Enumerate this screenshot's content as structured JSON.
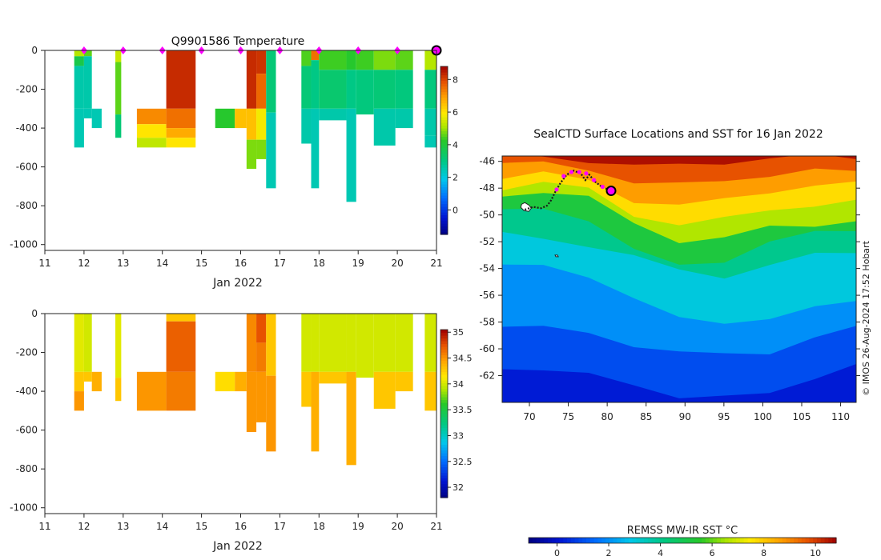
{
  "chart_data": [
    {
      "type": "heatmap",
      "name": "temperature-section",
      "title": "Q9901586  Temperature",
      "xlabel": "Jan 2022",
      "ylabel": "",
      "xlim": [
        11,
        21
      ],
      "ylim": [
        -1030,
        0
      ],
      "xticks": [
        11,
        12,
        13,
        14,
        15,
        16,
        17,
        18,
        19,
        20,
        21
      ],
      "yticks": [
        0,
        -200,
        -400,
        -600,
        -800,
        -1000
      ],
      "surface_markers": [
        12,
        13,
        14,
        15,
        16,
        17,
        18,
        19,
        20
      ],
      "last_profile_marker": 21,
      "colorbar": {
        "min": -1.5,
        "max": 8.8,
        "ticks": [
          0,
          2,
          4,
          6,
          8
        ]
      },
      "profiles": [
        {
          "x0": 11.75,
          "x1": 12.0,
          "max_depth": 500,
          "segments": [
            [
              0,
              30,
              5.2
            ],
            [
              30,
              80,
              3.8
            ],
            [
              80,
              300,
              2.6
            ],
            [
              300,
              500,
              2.5
            ]
          ]
        },
        {
          "x0": 12.0,
          "x1": 12.2,
          "max_depth": 350,
          "segments": [
            [
              0,
              30,
              4.6
            ],
            [
              30,
              300,
              2.6
            ],
            [
              300,
              350,
              2.5
            ]
          ]
        },
        {
          "x0": 12.2,
          "x1": 12.45,
          "max_depth": 400,
          "segments": [
            [
              300,
              400,
              2.5
            ]
          ]
        },
        {
          "x0": 12.8,
          "x1": 12.95,
          "max_depth": 450,
          "segments": [
            [
              0,
              60,
              5.4
            ],
            [
              60,
              330,
              4.6
            ],
            [
              330,
              450,
              3.2
            ]
          ]
        },
        {
          "x0": 13.35,
          "x1": 14.1,
          "max_depth": 500,
          "segments": [
            [
              300,
              380,
              7.2
            ],
            [
              380,
              450,
              6.0
            ],
            [
              450,
              500,
              5.3
            ]
          ]
        },
        {
          "x0": 14.1,
          "x1": 14.85,
          "max_depth": 500,
          "segments": [
            [
              0,
              300,
              8.3
            ],
            [
              300,
              400,
              7.5
            ],
            [
              400,
              450,
              6.8
            ],
            [
              450,
              500,
              6.0
            ]
          ]
        },
        {
          "x0": 15.35,
          "x1": 15.85,
          "max_depth": 400,
          "segments": [
            [
              300,
              400,
              4.2
            ]
          ]
        },
        {
          "x0": 15.85,
          "x1": 16.15,
          "max_depth": 400,
          "segments": [
            [
              300,
              400,
              6.5
            ]
          ]
        },
        {
          "x0": 16.15,
          "x1": 16.4,
          "max_depth": 610,
          "segments": [
            [
              0,
              300,
              8.3
            ],
            [
              300,
              460,
              6.5
            ],
            [
              460,
              610,
              4.8
            ]
          ]
        },
        {
          "x0": 16.4,
          "x1": 16.65,
          "max_depth": 560,
          "segments": [
            [
              0,
              120,
              8.2
            ],
            [
              120,
              300,
              7.6
            ],
            [
              300,
              460,
              5.8
            ],
            [
              460,
              560,
              4.8
            ]
          ]
        },
        {
          "x0": 16.65,
          "x1": 16.9,
          "max_depth": 710,
          "segments": [
            [
              0,
              320,
              3.2
            ],
            [
              320,
              710,
              2.5
            ]
          ]
        },
        {
          "x0": 17.55,
          "x1": 17.8,
          "max_depth": 480,
          "segments": [
            [
              0,
              80,
              4.5
            ],
            [
              80,
              300,
              3.2
            ],
            [
              300,
              480,
              2.6
            ]
          ]
        },
        {
          "x0": 17.8,
          "x1": 18.0,
          "max_depth": 710,
          "segments": [
            [
              0,
              50,
              7.5
            ],
            [
              50,
              300,
              3.0
            ],
            [
              300,
              710,
              2.5
            ]
          ]
        },
        {
          "x0": 18.0,
          "x1": 18.7,
          "max_depth": 360,
          "segments": [
            [
              0,
              100,
              4.4
            ],
            [
              100,
              300,
              3.3
            ],
            [
              300,
              360,
              2.6
            ]
          ]
        },
        {
          "x0": 18.7,
          "x1": 18.95,
          "max_depth": 780,
          "segments": [
            [
              0,
              100,
              4.2
            ],
            [
              100,
              300,
              3.0
            ],
            [
              300,
              780,
              2.5
            ]
          ]
        },
        {
          "x0": 18.95,
          "x1": 19.4,
          "max_depth": 330,
          "segments": [
            [
              0,
              100,
              4.4
            ],
            [
              100,
              330,
              3.1
            ]
          ]
        },
        {
          "x0": 19.4,
          "x1": 19.95,
          "max_depth": 490,
          "segments": [
            [
              0,
              100,
              4.8
            ],
            [
              100,
              300,
              3.2
            ],
            [
              300,
              490,
              2.6
            ]
          ]
        },
        {
          "x0": 19.95,
          "x1": 20.4,
          "max_depth": 400,
          "segments": [
            [
              0,
              100,
              4.6
            ],
            [
              100,
              300,
              3.1
            ],
            [
              300,
              400,
              2.6
            ]
          ]
        },
        {
          "x0": 20.7,
          "x1": 21.0,
          "max_depth": 500,
          "segments": [
            [
              0,
              100,
              5.2
            ],
            [
              100,
              300,
              3.1
            ],
            [
              300,
              440,
              2.6
            ],
            [
              440,
              500,
              2.5
            ]
          ]
        }
      ]
    },
    {
      "type": "heatmap",
      "name": "salinity-section",
      "title": "",
      "xlabel": "Jan 2022",
      "ylabel": "",
      "xlim": [
        11,
        21
      ],
      "ylim": [
        -1030,
        0
      ],
      "xticks": [
        11,
        12,
        13,
        14,
        15,
        16,
        17,
        18,
        19,
        20,
        21
      ],
      "yticks": [
        0,
        -200,
        -400,
        -600,
        -800,
        -1000
      ],
      "colorbar": {
        "min": 31.8,
        "max": 35.05,
        "ticks": [
          32,
          32.5,
          33,
          33.5,
          34,
          34.5,
          35
        ]
      },
      "profiles": [
        {
          "x0": 11.75,
          "x1": 12.0,
          "max_depth": 500,
          "segments": [
            [
              0,
              300,
              34.05
            ],
            [
              300,
              400,
              34.3
            ],
            [
              400,
              500,
              34.5
            ]
          ]
        },
        {
          "x0": 12.0,
          "x1": 12.2,
          "max_depth": 350,
          "segments": [
            [
              0,
              300,
              34.0
            ],
            [
              300,
              350,
              34.3
            ]
          ]
        },
        {
          "x0": 12.2,
          "x1": 12.45,
          "max_depth": 400,
          "segments": [
            [
              300,
              400,
              34.4
            ]
          ]
        },
        {
          "x0": 12.8,
          "x1": 12.95,
          "max_depth": 450,
          "segments": [
            [
              0,
              330,
              34.05
            ],
            [
              330,
              450,
              34.3
            ]
          ]
        },
        {
          "x0": 13.35,
          "x1": 14.1,
          "max_depth": 500,
          "segments": [
            [
              300,
              500,
              34.5
            ]
          ]
        },
        {
          "x0": 14.1,
          "x1": 14.85,
          "max_depth": 500,
          "segments": [
            [
              0,
              40,
              34.3
            ],
            [
              40,
              300,
              34.7
            ],
            [
              300,
              500,
              34.6
            ]
          ]
        },
        {
          "x0": 15.35,
          "x1": 15.85,
          "max_depth": 400,
          "segments": [
            [
              300,
              400,
              34.2
            ]
          ]
        },
        {
          "x0": 15.85,
          "x1": 16.15,
          "max_depth": 400,
          "segments": [
            [
              300,
              400,
              34.4
            ]
          ]
        },
        {
          "x0": 16.15,
          "x1": 16.4,
          "max_depth": 610,
          "segments": [
            [
              0,
              300,
              34.55
            ],
            [
              300,
              610,
              34.5
            ]
          ]
        },
        {
          "x0": 16.4,
          "x1": 16.65,
          "max_depth": 560,
          "segments": [
            [
              0,
              150,
              34.75
            ],
            [
              150,
              300,
              34.6
            ],
            [
              300,
              560,
              34.5
            ]
          ]
        },
        {
          "x0": 16.65,
          "x1": 16.9,
          "max_depth": 710,
          "segments": [
            [
              0,
              320,
              34.3
            ],
            [
              320,
              710,
              34.5
            ]
          ]
        },
        {
          "x0": 17.55,
          "x1": 17.8,
          "max_depth": 480,
          "segments": [
            [
              0,
              300,
              34.0
            ],
            [
              300,
              480,
              34.3
            ]
          ]
        },
        {
          "x0": 17.8,
          "x1": 18.0,
          "max_depth": 710,
          "segments": [
            [
              0,
              300,
              34.0
            ],
            [
              300,
              710,
              34.4
            ]
          ]
        },
        {
          "x0": 18.0,
          "x1": 18.7,
          "max_depth": 360,
          "segments": [
            [
              0,
              300,
              34.0
            ],
            [
              300,
              360,
              34.3
            ]
          ]
        },
        {
          "x0": 18.7,
          "x1": 18.95,
          "max_depth": 780,
          "segments": [
            [
              0,
              300,
              34.0
            ],
            [
              300,
              780,
              34.4
            ]
          ]
        },
        {
          "x0": 18.95,
          "x1": 19.4,
          "max_depth": 330,
          "segments": [
            [
              0,
              330,
              34.0
            ]
          ]
        },
        {
          "x0": 19.4,
          "x1": 19.95,
          "max_depth": 490,
          "segments": [
            [
              0,
              300,
              34.0
            ],
            [
              300,
              490,
              34.3
            ]
          ]
        },
        {
          "x0": 19.95,
          "x1": 20.4,
          "max_depth": 400,
          "segments": [
            [
              0,
              300,
              34.0
            ],
            [
              300,
              400,
              34.3
            ]
          ]
        },
        {
          "x0": 20.7,
          "x1": 21.0,
          "max_depth": 500,
          "segments": [
            [
              0,
              300,
              34.0
            ],
            [
              300,
              500,
              34.3
            ]
          ]
        }
      ]
    },
    {
      "type": "heatmap",
      "name": "sst-map",
      "title": "SealCTD Surface Locations and SST for 16 Jan 2022",
      "xlabel": "",
      "ylabel": "",
      "xlim": [
        66.5,
        112
      ],
      "ylim": [
        -64,
        -45.6
      ],
      "xticks": [
        70,
        75,
        80,
        85,
        90,
        95,
        100,
        105,
        110
      ],
      "yticks": [
        -46,
        -48,
        -50,
        -52,
        -54,
        -56,
        -58,
        -60,
        -62
      ],
      "colorbar": {
        "label": "REMSS MW-IR SST °C",
        "min": -1.1,
        "max": 10.8,
        "ticks": [
          0,
          2,
          4,
          6,
          8,
          10
        ]
      },
      "credit": "© IMOS 26-Aug-2024 17:52 Hobart",
      "track": [
        [
          69.4,
          -49.6
        ],
        [
          70.5,
          -49.4
        ],
        [
          71.5,
          -49.5
        ],
        [
          72.3,
          -49.3
        ],
        [
          72.8,
          -48.9
        ],
        [
          73.3,
          -48.3
        ],
        [
          74.0,
          -47.6
        ],
        [
          74.8,
          -47.0
        ],
        [
          75.7,
          -46.7
        ],
        [
          76.6,
          -46.9
        ],
        [
          77.2,
          -47.4
        ],
        [
          77.7,
          -47.0
        ],
        [
          78.4,
          -47.5
        ],
        [
          79.3,
          -47.9
        ],
        [
          80.5,
          -48.2
        ]
      ],
      "surface_points": [
        [
          73.5,
          -48.1
        ],
        [
          74.4,
          -47.1
        ],
        [
          75.4,
          -46.8
        ],
        [
          76.4,
          -46.8
        ],
        [
          77.3,
          -46.9
        ],
        [
          78.3,
          -47.4
        ],
        [
          79.4,
          -47.9
        ]
      ],
      "last_location": [
        80.5,
        -48.2
      ]
    }
  ]
}
